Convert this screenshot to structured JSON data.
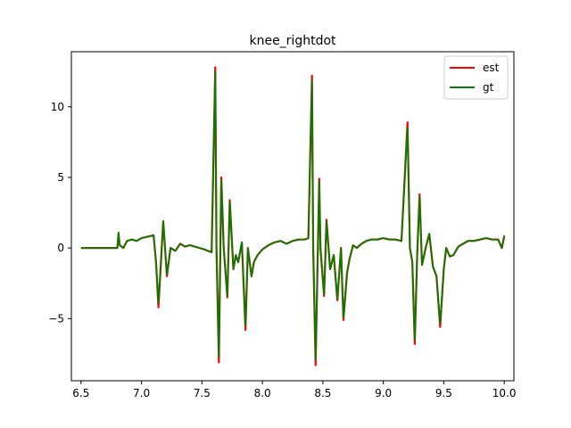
{
  "chart_data": {
    "type": "line",
    "title": "knee_rightdot",
    "xlabel": "",
    "ylabel": "",
    "xlim": [
      6.42,
      10.08
    ],
    "ylim": [
      -9.4,
      13.9
    ],
    "xticks": [
      6.5,
      7.0,
      7.5,
      8.0,
      8.5,
      9.0,
      9.5,
      10.0
    ],
    "xtick_labels": [
      "6.5",
      "7.0",
      "7.5",
      "8.0",
      "8.5",
      "9.0",
      "9.5",
      "10.0"
    ],
    "yticks": [
      -5,
      0,
      5,
      10
    ],
    "ytick_labels": [
      "−5",
      "0",
      "5",
      "10"
    ],
    "grid": false,
    "legend_position": "top-right",
    "series": [
      {
        "name": "est",
        "color": "#ff0000",
        "x": [
          6.5,
          6.8,
          6.81,
          6.82,
          6.85,
          6.88,
          6.92,
          6.96,
          7.0,
          7.05,
          7.1,
          7.12,
          7.14,
          7.18,
          7.21,
          7.24,
          7.28,
          7.32,
          7.36,
          7.4,
          7.44,
          7.48,
          7.52,
          7.55,
          7.58,
          7.61,
          7.62,
          7.64,
          7.66,
          7.68,
          7.71,
          7.73,
          7.76,
          7.78,
          7.8,
          7.83,
          7.86,
          7.88,
          7.91,
          7.93,
          7.96,
          8.0,
          8.05,
          8.1,
          8.15,
          8.2,
          8.25,
          8.3,
          8.35,
          8.38,
          8.41,
          8.42,
          8.44,
          8.47,
          8.48,
          8.51,
          8.53,
          8.56,
          8.59,
          8.62,
          8.65,
          8.67,
          8.7,
          8.72,
          8.75,
          8.78,
          8.82,
          8.86,
          8.9,
          8.95,
          9.0,
          9.05,
          9.1,
          9.15,
          9.2,
          9.22,
          9.24,
          9.26,
          9.28,
          9.3,
          9.32,
          9.35,
          9.38,
          9.41,
          9.44,
          9.47,
          9.5,
          9.52,
          9.55,
          9.58,
          9.62,
          9.66,
          9.7,
          9.75,
          9.8,
          9.85,
          9.9,
          9.95,
          9.98,
          10.0
        ],
        "y": [
          0.0,
          0.0,
          1.0,
          0.2,
          0.0,
          0.5,
          0.6,
          0.5,
          0.7,
          0.8,
          0.9,
          -1.0,
          -4.2,
          1.9,
          -2.0,
          0.0,
          -0.2,
          0.3,
          0.1,
          0.2,
          0.1,
          0.0,
          -0.1,
          -0.2,
          -0.3,
          12.8,
          0.0,
          -8.1,
          5.0,
          0.0,
          -3.5,
          3.4,
          -1.5,
          -0.5,
          -1.0,
          0.4,
          -5.8,
          0.0,
          -2.0,
          -1.0,
          -0.5,
          -0.1,
          0.2,
          0.4,
          0.5,
          0.3,
          0.5,
          0.6,
          0.6,
          0.7,
          12.2,
          0.0,
          -8.3,
          4.9,
          0.0,
          -3.4,
          2.0,
          -1.5,
          -0.5,
          -3.7,
          0.0,
          -5.1,
          -1.8,
          -0.8,
          0.2,
          0.0,
          0.3,
          0.5,
          0.6,
          0.6,
          0.7,
          0.6,
          0.6,
          0.5,
          8.9,
          0.0,
          -1.0,
          -6.8,
          -0.5,
          3.8,
          -1.2,
          0.0,
          1.0,
          -1.3,
          -2.0,
          -5.6,
          -1.5,
          0.0,
          -0.6,
          -0.5,
          0.1,
          0.3,
          0.5,
          0.5,
          0.6,
          0.7,
          0.6,
          0.6,
          0.0,
          0.8
        ]
      },
      {
        "name": "gt",
        "color": "#008000",
        "x": [
          6.5,
          6.8,
          6.81,
          6.82,
          6.85,
          6.88,
          6.92,
          6.96,
          7.0,
          7.05,
          7.1,
          7.12,
          7.14,
          7.18,
          7.21,
          7.24,
          7.28,
          7.32,
          7.36,
          7.4,
          7.44,
          7.48,
          7.52,
          7.55,
          7.58,
          7.61,
          7.62,
          7.64,
          7.66,
          7.68,
          7.71,
          7.73,
          7.76,
          7.78,
          7.8,
          7.83,
          7.86,
          7.88,
          7.91,
          7.93,
          7.96,
          8.0,
          8.05,
          8.1,
          8.15,
          8.2,
          8.25,
          8.3,
          8.35,
          8.38,
          8.41,
          8.42,
          8.44,
          8.47,
          8.48,
          8.51,
          8.53,
          8.56,
          8.59,
          8.62,
          8.65,
          8.67,
          8.7,
          8.72,
          8.75,
          8.78,
          8.82,
          8.86,
          8.9,
          8.95,
          9.0,
          9.05,
          9.1,
          9.15,
          9.2,
          9.22,
          9.24,
          9.26,
          9.28,
          9.3,
          9.32,
          9.35,
          9.38,
          9.41,
          9.44,
          9.47,
          9.5,
          9.52,
          9.55,
          9.58,
          9.62,
          9.66,
          9.7,
          9.75,
          9.8,
          9.85,
          9.9,
          9.95,
          9.98,
          10.0
        ],
        "y": [
          0.0,
          0.0,
          1.1,
          0.2,
          0.0,
          0.5,
          0.6,
          0.5,
          0.7,
          0.8,
          0.9,
          -1.0,
          -3.9,
          1.9,
          -1.9,
          0.0,
          -0.2,
          0.3,
          0.1,
          0.2,
          0.1,
          0.0,
          -0.1,
          -0.2,
          -0.3,
          12.5,
          0.0,
          -7.7,
          4.8,
          0.0,
          -3.4,
          3.3,
          -1.5,
          -0.5,
          -1.0,
          0.4,
          -5.5,
          0.0,
          -2.0,
          -1.0,
          -0.5,
          -0.1,
          0.2,
          0.4,
          0.5,
          0.3,
          0.5,
          0.6,
          0.6,
          0.7,
          11.9,
          0.0,
          -7.9,
          4.7,
          0.0,
          -3.3,
          1.9,
          -1.5,
          -0.5,
          -3.6,
          0.0,
          -4.9,
          -1.7,
          -0.8,
          0.2,
          0.0,
          0.3,
          0.5,
          0.6,
          0.6,
          0.7,
          0.6,
          0.6,
          0.5,
          8.5,
          0.0,
          -1.0,
          -6.5,
          -0.5,
          3.6,
          -1.2,
          0.0,
          1.0,
          -1.3,
          -2.0,
          -5.3,
          -1.5,
          0.0,
          -0.6,
          -0.5,
          0.1,
          0.3,
          0.5,
          0.5,
          0.6,
          0.7,
          0.6,
          0.6,
          0.0,
          0.9
        ]
      }
    ]
  }
}
